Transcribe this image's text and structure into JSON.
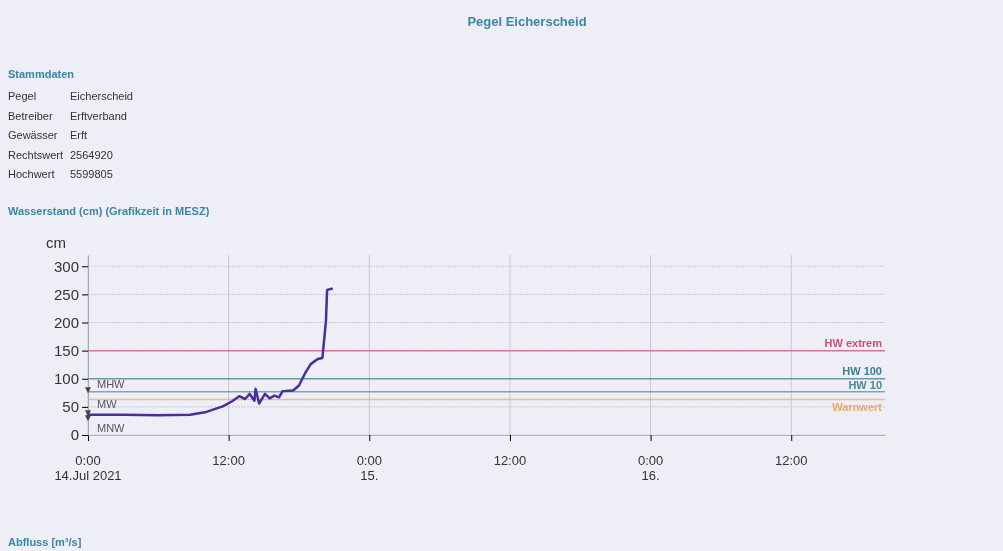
{
  "chart_data": {
    "type": "line",
    "title": "Pegel Eicherscheid",
    "subtitle": "Wasserstand (cm) (Grafikzeit in MESZ)",
    "ylabel": "cm",
    "annotations": [
      "Stammdaten",
      "Pegel",
      "Eicherscheid",
      "Betreiber",
      "Erftverband",
      "Gewässer",
      "Erft",
      "Rechtswert",
      "2564920",
      "Hochwert",
      "5599805",
      "Abfluss [m³/s]",
      {
        "text": "MHW",
        "x": "2021-07-14T00:00",
        "y": 78
      },
      {
        "text": "MW",
        "x": "2021-07-14T00:00",
        "y": 37
      },
      {
        "text": "MNW",
        "x": "2021-07-14T00:00",
        "y": 28
      }
    ],
    "xlim": [
      "2021-07-14T00:00",
      "2021-07-16T20:00"
    ],
    "xticks": [
      {
        "value": "2021-07-14T00:00",
        "label": "0:00\n14.Jul 2021"
      },
      {
        "value": "2021-07-14T12:00",
        "label": "12:00"
      },
      {
        "value": "2021-07-15T00:00",
        "label": "0:00\n15."
      },
      {
        "value": "2021-07-15T12:00",
        "label": "12:00"
      },
      {
        "value": "2021-07-16T00:00",
        "label": "0:00\n16."
      },
      {
        "value": "2021-07-16T12:00",
        "label": "12:00"
      }
    ],
    "ylim": [
      0,
      320
    ],
    "yticks": [
      0,
      50,
      100,
      150,
      200,
      250,
      300
    ],
    "grid": true,
    "marker": "none",
    "line_style": "solid",
    "series": [
      {
        "color": "#4a2e9a",
        "x": [
          "2021-07-14T00:00",
          "2021-07-14T03:00",
          "2021-07-14T06:00",
          "2021-07-14T08:42",
          "2021-07-14T10:06",
          "2021-07-14T11:30",
          "2021-07-14T12:18",
          "2021-07-14T12:54",
          "2021-07-14T13:24",
          "2021-07-14T13:48",
          "2021-07-14T14:12",
          "2021-07-14T14:18",
          "2021-07-14T14:36",
          "2021-07-14T15:06",
          "2021-07-14T15:30",
          "2021-07-14T15:54",
          "2021-07-14T16:18",
          "2021-07-14T16:36",
          "2021-07-14T17:30",
          "2021-07-14T18:00",
          "2021-07-14T18:30",
          "2021-07-14T19:00",
          "2021-07-14T19:36",
          "2021-07-14T20:00",
          "2021-07-14T20:18",
          "2021-07-14T20:24",
          "2021-07-14T20:48"
        ],
        "values": [
          36,
          36,
          35,
          36,
          41,
          51,
          60,
          69,
          64,
          73,
          61,
          82,
          56,
          73,
          65,
          70,
          67,
          78,
          79,
          88,
          109,
          126,
          135,
          137,
          202,
          258,
          260
        ]
      }
    ],
    "ref_lines": [
      {
        "axis": "y",
        "value": 150,
        "label": "HW extrem",
        "color": "#d05070"
      },
      {
        "axis": "y",
        "value": 100,
        "label": "HW 100",
        "color": "#3a7f8f"
      },
      {
        "axis": "y",
        "value": 77,
        "label": "HW 10",
        "color": "#4a8a90"
      },
      {
        "axis": "y",
        "value": 63,
        "label": "Warnwert",
        "color": "#f0a860"
      }
    ]
  }
}
